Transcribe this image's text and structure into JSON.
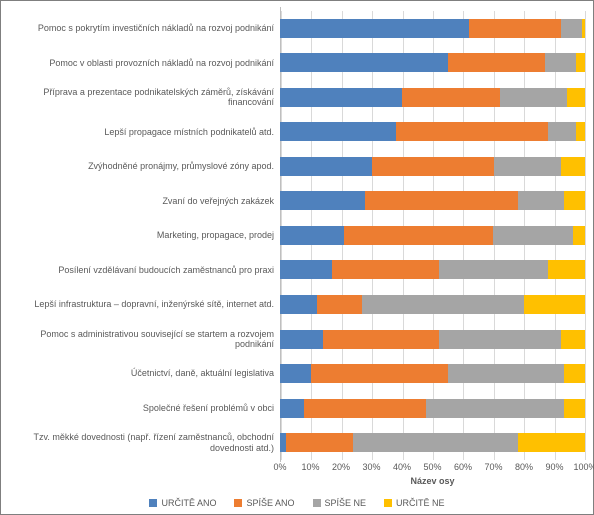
{
  "chart": {
    "type": "stacked-bar-horizontal",
    "background_color": "#ffffff",
    "grid_color": "#d9d9d9",
    "border_color": "#7f7f7f",
    "label_fontsize": 9,
    "label_color": "#595959",
    "xlim": [
      0,
      100
    ],
    "xtick_step": 10,
    "xticks": [
      "0%",
      "10%",
      "20%",
      "30%",
      "40%",
      "50%",
      "60%",
      "70%",
      "80%",
      "90%",
      "100%"
    ],
    "xaxis_title": "Název osy",
    "series": [
      {
        "key": "urcite_ano",
        "label": "URČITĚ ANO",
        "color": "#4f81bd"
      },
      {
        "key": "spise_ano",
        "label": "SPÍŠE ANO",
        "color": "#ed7d31"
      },
      {
        "key": "spise_ne",
        "label": "SPÍŠE NE",
        "color": "#a5a5a5"
      },
      {
        "key": "urcite_ne",
        "label": "URČITĚ NE",
        "color": "#ffc000"
      }
    ],
    "categories": [
      {
        "label": "Pomoc s pokrytím investičních nákladů na rozvoj podnikání",
        "values": [
          62,
          30,
          7,
          1
        ]
      },
      {
        "label": "Pomoc v oblasti provozních nákladů na rozvoj podnikání",
        "values": [
          55,
          32,
          10,
          3
        ]
      },
      {
        "label": "Příprava a prezentace podnikatelských záměrů, získávání financování",
        "values": [
          40,
          32,
          22,
          6
        ]
      },
      {
        "label": "Lepší propagace místních podnikatelů atd.",
        "values": [
          38,
          50,
          9,
          3
        ]
      },
      {
        "label": "Zvýhodněné pronájmy, průmyslové zóny apod.",
        "values": [
          30,
          40,
          22,
          8
        ]
      },
      {
        "label": "Zvaní do veřejných zakázek",
        "values": [
          28,
          50,
          15,
          7
        ]
      },
      {
        "label": "Marketing, propagace, prodej",
        "values": [
          21,
          49,
          26,
          4
        ]
      },
      {
        "label": "Posílení vzdělávaní budoucích zaměstnanců pro praxi",
        "values": [
          17,
          35,
          36,
          12
        ]
      },
      {
        "label": "Lepší infrastruktura – dopravní, inženýrské sítě, internet atd.",
        "values": [
          12,
          15,
          53,
          20
        ]
      },
      {
        "label": "Pomoc s administrativou související se startem a rozvojem podnikání",
        "values": [
          14,
          38,
          40,
          8
        ]
      },
      {
        "label": "Účetnictví, daně, aktuální legislativa",
        "values": [
          10,
          45,
          38,
          7
        ]
      },
      {
        "label": "Společné řešení problémů v obci",
        "values": [
          8,
          40,
          45,
          7
        ]
      },
      {
        "label": "Tzv. měkké dovednosti (např. řízení zaměstnanců, obchodní dovednosti atd.)",
        "values": [
          2,
          22,
          54,
          22
        ]
      }
    ]
  }
}
